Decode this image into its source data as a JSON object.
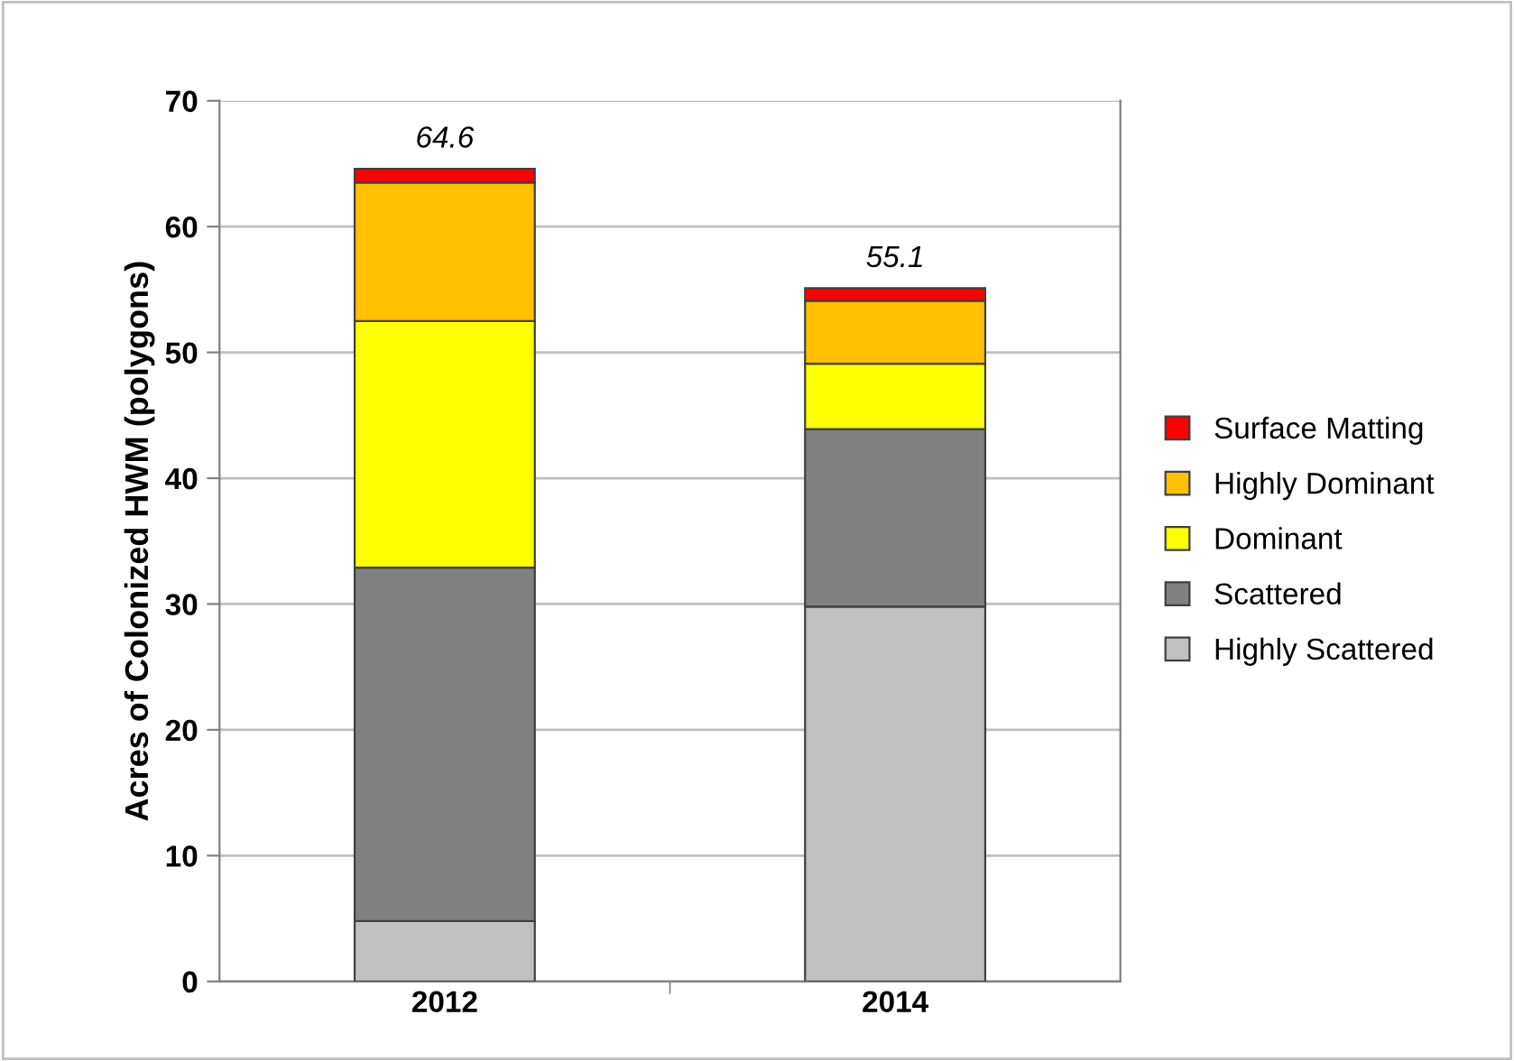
{
  "chart_data": {
    "type": "bar",
    "stacked": true,
    "ylabel": "Acres of Colonized HWM (polygons)",
    "categories": [
      "2012",
      "2014"
    ],
    "series": [
      {
        "name": "Highly Scattered",
        "color": "#c0c0c0",
        "values": [
          4.8,
          29.8
        ]
      },
      {
        "name": "Scattered",
        "color": "#808080",
        "values": [
          28.1,
          14.1
        ]
      },
      {
        "name": "Dominant",
        "color": "#ffff00",
        "values": [
          19.6,
          5.2
        ]
      },
      {
        "name": "Highly Dominant",
        "color": "#ffc000",
        "values": [
          11.0,
          5.0
        ]
      },
      {
        "name": "Surface Matting",
        "color": "#ff0000",
        "values": [
          1.1,
          1.0
        ]
      }
    ],
    "totals": [
      "64.6",
      "55.1"
    ],
    "ylim": [
      0,
      70
    ],
    "yticks": [
      0,
      10,
      20,
      30,
      40,
      50,
      60,
      70
    ],
    "grid": "y",
    "legend": "right"
  }
}
